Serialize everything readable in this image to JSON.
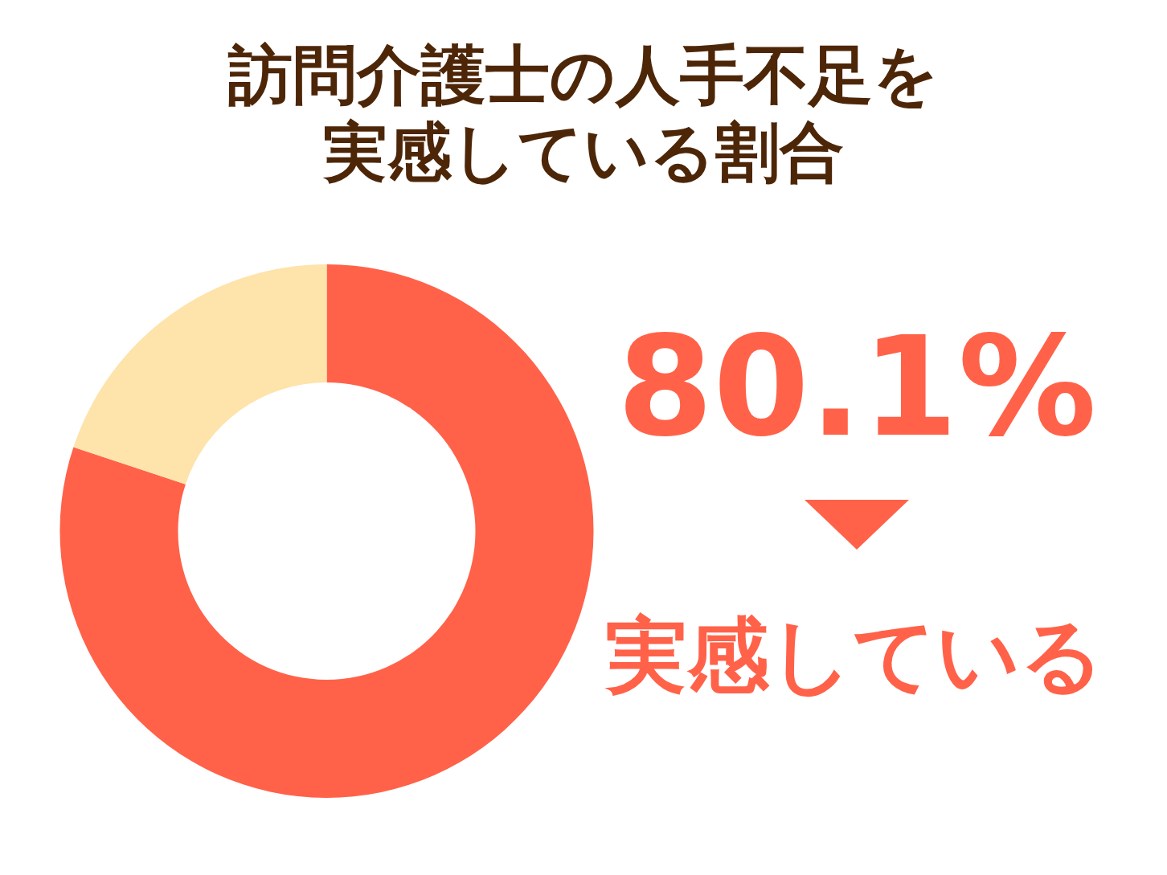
{
  "chart_data": {
    "type": "donut",
    "title": "訪問介護士の人手不足を実感している割合",
    "categories": [
      "実感している",
      null
    ],
    "values": [
      80.1,
      19.9
    ],
    "colors": [
      "#ff6249",
      "#fee3aa"
    ],
    "value_labels": [
      "80.1%",
      null
    ]
  }
}
